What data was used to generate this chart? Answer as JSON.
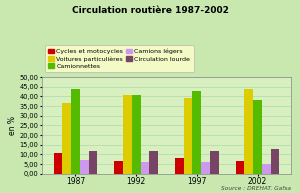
{
  "title": "Circulation routière 1987-2002",
  "ylabel": "en %",
  "source": "Source : DREHAT. Gafsa",
  "years": [
    1987,
    1992,
    1997,
    2002
  ],
  "year_labels": [
    "1987",
    "1992",
    "1997",
    "2002"
  ],
  "series": [
    {
      "label": "Cycles et motocycles",
      "color": "#cc0000",
      "values": [
        10.5,
        6.8,
        8.0,
        6.8
      ]
    },
    {
      "label": "Voitures particulières",
      "color": "#ddcc00",
      "values": [
        36.5,
        41.0,
        39.0,
        44.0
      ]
    },
    {
      "label": "Camionnettes",
      "color": "#55bb00",
      "values": [
        44.0,
        41.0,
        43.0,
        38.0
      ]
    },
    {
      "label": "Camions légers",
      "color": "#cc99ee",
      "values": [
        7.0,
        6.0,
        6.0,
        5.0
      ]
    },
    {
      "label": "Circulation lourde",
      "color": "#774466",
      "values": [
        12.0,
        12.0,
        12.0,
        13.0
      ]
    }
  ],
  "ylim": [
    0,
    50
  ],
  "yticks": [
    0,
    5.0,
    10.0,
    15.0,
    20.0,
    25.0,
    30.0,
    35.0,
    40.0,
    45.0,
    50.0
  ],
  "ytick_labels": [
    "0,00",
    "5,00",
    "10,00",
    "15,00",
    "20,00",
    "25,00",
    "30,00",
    "35,00",
    "40,00",
    "45,00",
    "50,00"
  ],
  "background_color": "#c8e8b0",
  "plot_bg_color": "#d8f0c0",
  "legend_bg": "#ffffcc",
  "grid_color": "#aaddaa"
}
